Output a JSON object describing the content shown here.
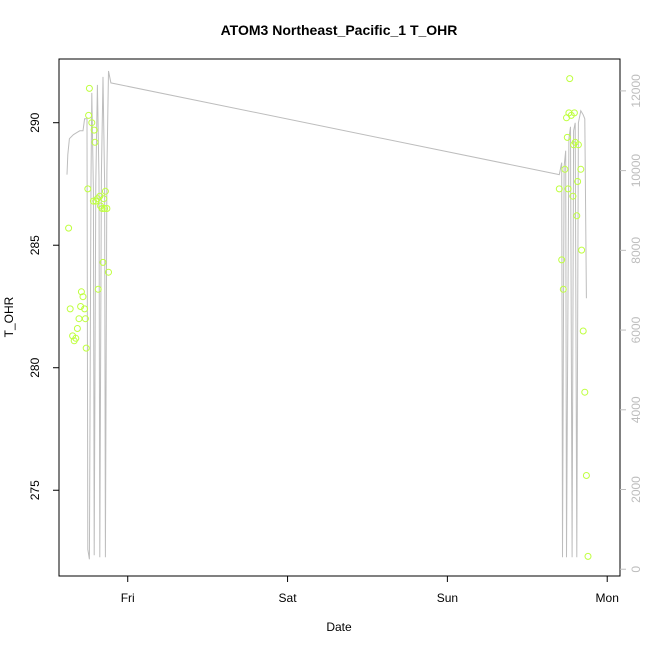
{
  "chart_data": {
    "type": "scatter",
    "title": "ATOM3 Northeast_Pacific_1 T_OHR",
    "xlabel": "Date",
    "ylabel": "T_OHR",
    "x_ticks": [
      {
        "label": "Fri",
        "value": 1.0
      },
      {
        "label": "Sat",
        "value": 2.0
      },
      {
        "label": "Sun",
        "value": 3.0
      },
      {
        "label": "Mon",
        "value": 4.0
      }
    ],
    "xlim": [
      0.57,
      4.08
    ],
    "ylim": [
      271.5,
      292.6
    ],
    "y_ticks": [
      275,
      280,
      285,
      290
    ],
    "y2lim": [
      -170,
      12800
    ],
    "y2_ticks": [
      0,
      2000,
      4000,
      6000,
      8000,
      10000,
      12000
    ],
    "colors": {
      "points": "#bfff3f",
      "line": "#bdbdbd",
      "axis": "#000000",
      "right_axis": "#bdbdbd"
    },
    "series": [
      {
        "kind": "points",
        "points": [
          [
            0.63,
            285.7
          ],
          [
            0.64,
            282.4
          ],
          [
            0.655,
            281.3
          ],
          [
            0.665,
            281.1
          ],
          [
            0.675,
            281.2
          ],
          [
            0.685,
            281.6
          ],
          [
            0.695,
            282.0
          ],
          [
            0.705,
            282.5
          ],
          [
            0.71,
            283.1
          ],
          [
            0.72,
            282.9
          ],
          [
            0.73,
            282.4
          ],
          [
            0.735,
            282.0
          ],
          [
            0.74,
            280.8
          ],
          [
            0.75,
            287.3
          ],
          [
            0.755,
            290.3
          ],
          [
            0.76,
            291.4
          ],
          [
            0.775,
            290.0
          ],
          [
            0.785,
            286.8
          ],
          [
            0.79,
            289.7
          ],
          [
            0.795,
            289.2
          ],
          [
            0.8,
            286.8
          ],
          [
            0.81,
            286.9
          ],
          [
            0.815,
            283.2
          ],
          [
            0.825,
            287.0
          ],
          [
            0.83,
            286.6
          ],
          [
            0.84,
            286.5
          ],
          [
            0.845,
            284.3
          ],
          [
            0.85,
            286.9
          ],
          [
            0.855,
            286.5
          ],
          [
            0.86,
            287.2
          ],
          [
            0.87,
            286.5
          ],
          [
            0.88,
            283.9
          ],
          [
            3.7,
            287.3
          ],
          [
            3.715,
            284.4
          ],
          [
            3.725,
            283.2
          ],
          [
            3.735,
            288.1
          ],
          [
            3.745,
            290.2
          ],
          [
            3.75,
            289.4
          ],
          [
            3.755,
            287.3
          ],
          [
            3.76,
            290.4
          ],
          [
            3.765,
            291.8
          ],
          [
            3.775,
            290.3
          ],
          [
            3.785,
            287.0
          ],
          [
            3.79,
            289.1
          ],
          [
            3.795,
            290.4
          ],
          [
            3.8,
            289.2
          ],
          [
            3.81,
            286.2
          ],
          [
            3.815,
            287.6
          ],
          [
            3.82,
            289.1
          ],
          [
            3.835,
            288.1
          ],
          [
            3.84,
            284.8
          ],
          [
            3.85,
            281.5
          ],
          [
            3.86,
            279.0
          ],
          [
            3.87,
            275.6
          ],
          [
            3.88,
            272.3
          ]
        ]
      },
      {
        "kind": "line",
        "axis": "right",
        "points": [
          [
            0.62,
            9900
          ],
          [
            0.625,
            10400
          ],
          [
            0.635,
            10800
          ],
          [
            0.66,
            10900
          ],
          [
            0.68,
            10950
          ],
          [
            0.7,
            11000
          ],
          [
            0.72,
            11000
          ],
          [
            0.73,
            11300
          ],
          [
            0.745,
            11300
          ],
          [
            0.75,
            500
          ],
          [
            0.76,
            250
          ],
          [
            0.77,
            9800
          ],
          [
            0.775,
            11950
          ],
          [
            0.785,
            9500
          ],
          [
            0.79,
            350
          ],
          [
            0.8,
            9700
          ],
          [
            0.81,
            12150
          ],
          [
            0.82,
            9800
          ],
          [
            0.825,
            300
          ],
          [
            0.835,
            9900
          ],
          [
            0.845,
            12350
          ],
          [
            0.855,
            9700
          ],
          [
            0.86,
            300
          ],
          [
            0.87,
            10000
          ],
          [
            0.88,
            12500
          ],
          [
            0.895,
            12200
          ],
          [
            3.7,
            9900
          ],
          [
            3.715,
            10200
          ],
          [
            3.72,
            300
          ],
          [
            3.73,
            10100
          ],
          [
            3.74,
            10500
          ],
          [
            3.745,
            300
          ],
          [
            3.76,
            10800
          ],
          [
            3.77,
            11100
          ],
          [
            3.78,
            300
          ],
          [
            3.79,
            11000
          ],
          [
            3.8,
            11200
          ],
          [
            3.81,
            300
          ],
          [
            3.82,
            11200
          ],
          [
            3.835,
            11500
          ],
          [
            3.85,
            11400
          ],
          [
            3.86,
            11300
          ],
          [
            3.87,
            6800
          ]
        ]
      }
    ],
    "grid": false,
    "legend": "none"
  }
}
